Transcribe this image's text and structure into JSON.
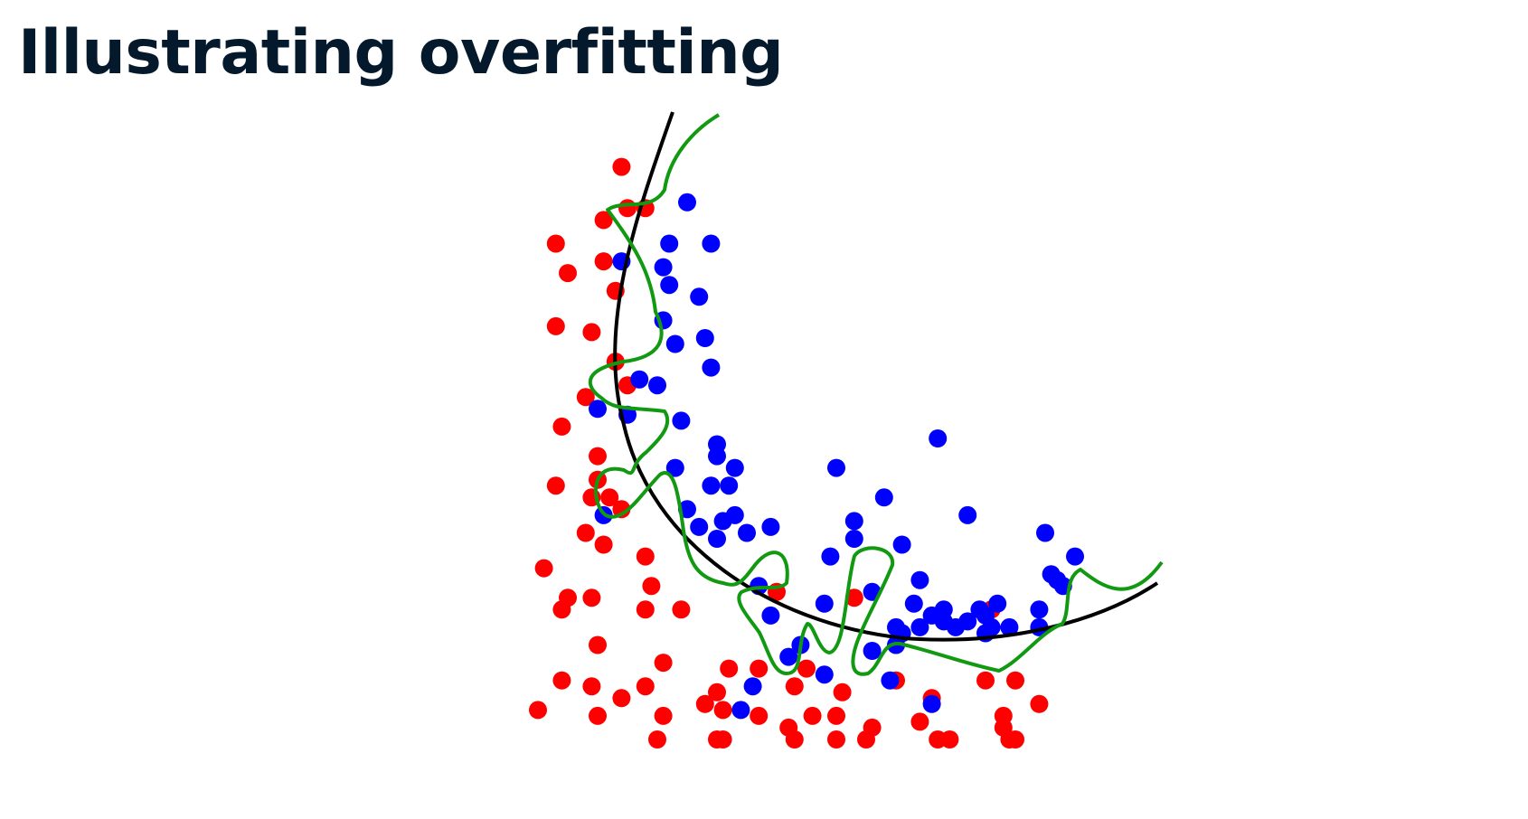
{
  "slide": {
    "title": "Illustrating overfitting"
  },
  "colors": {
    "class_a": "#ff0000",
    "class_b": "#0000ff",
    "smooth_boundary": "#000000",
    "overfit_boundary": "#119911",
    "title": "#05192d"
  },
  "chart_data": {
    "type": "scatter",
    "title": "",
    "xlabel": "",
    "ylabel": "",
    "axes_visible": false,
    "grid": false,
    "xlim": [
      0,
      100
    ],
    "ylim": [
      0,
      100
    ],
    "series": [
      {
        "color": "red",
        "points": [
          [
            14,
            97
          ],
          [
            11,
            88
          ],
          [
            15,
            90
          ],
          [
            18,
            90
          ],
          [
            3,
            84
          ],
          [
            5,
            79
          ],
          [
            11,
            81
          ],
          [
            13,
            76
          ],
          [
            3,
            70
          ],
          [
            9,
            69
          ],
          [
            13,
            64
          ],
          [
            15,
            60
          ],
          [
            8,
            58
          ],
          [
            4,
            53
          ],
          [
            10,
            48
          ],
          [
            10,
            44
          ],
          [
            3,
            43
          ],
          [
            9,
            41
          ],
          [
            12,
            41
          ],
          [
            14,
            39
          ],
          [
            8,
            35
          ],
          [
            11,
            33
          ],
          [
            1,
            29
          ],
          [
            18,
            31
          ],
          [
            19,
            26
          ],
          [
            5,
            24
          ],
          [
            9,
            24
          ],
          [
            4,
            22
          ],
          [
            18,
            22
          ],
          [
            24,
            22
          ],
          [
            10,
            16
          ],
          [
            21,
            13
          ],
          [
            4,
            10
          ],
          [
            9,
            9
          ],
          [
            18,
            9
          ],
          [
            32,
            12
          ],
          [
            37,
            12
          ],
          [
            45,
            12
          ],
          [
            21,
            4
          ],
          [
            28,
            6
          ],
          [
            30,
            8
          ],
          [
            14,
            7
          ],
          [
            31,
            5
          ],
          [
            10,
            4
          ],
          [
            0,
            5
          ],
          [
            20,
            0
          ],
          [
            30,
            0
          ],
          [
            31,
            0
          ],
          [
            37,
            4
          ],
          [
            42,
            2
          ],
          [
            43,
            0
          ],
          [
            46,
            4
          ],
          [
            43,
            9
          ],
          [
            51,
            8
          ],
          [
            50,
            4
          ],
          [
            50,
            0
          ],
          [
            55,
            0
          ],
          [
            56,
            2
          ],
          [
            60,
            10
          ],
          [
            64,
            3
          ],
          [
            67,
            0
          ],
          [
            66,
            7
          ],
          [
            69,
            0
          ],
          [
            75,
            10
          ],
          [
            78,
            2
          ],
          [
            80,
            0
          ],
          [
            80,
            10
          ],
          [
            84,
            6
          ],
          [
            78,
            4
          ],
          [
            79,
            0
          ],
          [
            76,
            22
          ],
          [
            53,
            24
          ],
          [
            40,
            25
          ]
        ]
      },
      {
        "color": "blue",
        "points": [
          [
            25,
            91
          ],
          [
            22,
            84
          ],
          [
            29,
            84
          ],
          [
            14,
            81
          ],
          [
            21,
            80
          ],
          [
            22,
            77
          ],
          [
            27,
            75
          ],
          [
            21,
            71
          ],
          [
            28,
            68
          ],
          [
            23,
            67
          ],
          [
            29,
            63
          ],
          [
            17,
            61
          ],
          [
            20,
            60
          ],
          [
            10,
            56
          ],
          [
            15,
            55
          ],
          [
            24,
            54
          ],
          [
            30,
            50
          ],
          [
            30,
            48
          ],
          [
            23,
            46
          ],
          [
            33,
            46
          ],
          [
            29,
            43
          ],
          [
            32,
            43
          ],
          [
            25,
            39
          ],
          [
            11,
            38
          ],
          [
            33,
            38
          ],
          [
            31,
            37
          ],
          [
            27,
            36
          ],
          [
            30,
            34
          ],
          [
            35,
            35
          ],
          [
            39,
            36
          ],
          [
            50,
            46
          ],
          [
            67,
            51
          ],
          [
            58,
            41
          ],
          [
            53,
            37
          ],
          [
            72,
            38
          ],
          [
            61,
            33
          ],
          [
            53,
            34
          ],
          [
            49,
            31
          ],
          [
            64,
            27
          ],
          [
            56,
            25
          ],
          [
            63,
            23
          ],
          [
            68,
            22
          ],
          [
            74,
            22
          ],
          [
            72,
            20
          ],
          [
            75,
            21
          ],
          [
            77,
            23
          ],
          [
            85,
            35
          ],
          [
            86,
            28
          ],
          [
            87,
            27
          ],
          [
            90,
            31
          ],
          [
            60,
            19
          ],
          [
            61,
            18
          ],
          [
            64,
            19
          ],
          [
            66,
            21
          ],
          [
            68,
            20
          ],
          [
            70,
            19
          ],
          [
            75,
            18
          ],
          [
            76,
            19
          ],
          [
            84,
            22
          ],
          [
            84,
            19
          ],
          [
            37,
            26
          ],
          [
            39,
            21
          ],
          [
            48,
            23
          ],
          [
            44,
            16
          ],
          [
            42,
            14
          ],
          [
            48,
            11
          ],
          [
            56,
            15
          ],
          [
            60,
            16
          ],
          [
            59,
            10
          ],
          [
            36,
            9
          ],
          [
            34,
            5
          ],
          [
            66,
            6
          ],
          [
            79,
            19
          ],
          [
            88,
            26
          ]
        ]
      }
    ]
  }
}
